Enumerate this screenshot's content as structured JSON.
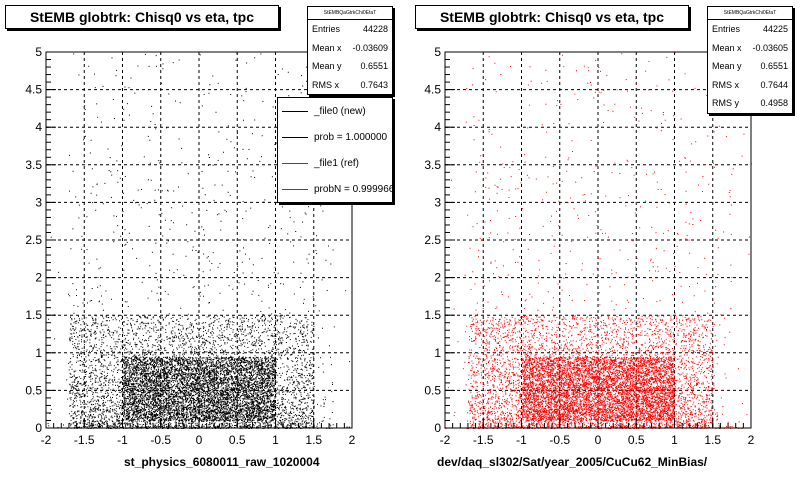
{
  "chart_data": [
    {
      "type": "scatter",
      "title": "StEMB globtrk: Chisq0 vs eta, tpc",
      "xlabel": "st_physics_6080011_raw_1020004",
      "xlim": [
        -2,
        2
      ],
      "ylim": [
        0,
        5
      ],
      "x_ticks": [
        "-2",
        "-1.5",
        "-1",
        "-0.5",
        "0",
        "0.5",
        "1",
        "1.5",
        "2"
      ],
      "y_ticks": [
        "0",
        "0.5",
        "1",
        "1.5",
        "2",
        "2.5",
        "3",
        "3.5",
        "4",
        "4.5",
        "5"
      ],
      "grid": true,
      "marker_color": "#000000",
      "stats": {
        "header": "StEMBQaGtrkChi0EtaT",
        "rows": [
          {
            "label": "Entries",
            "value": "44228"
          },
          {
            "label": "Mean x",
            "value": "-0.03609"
          },
          {
            "label": "Mean y",
            "value": "0.6551"
          },
          {
            "label": "RMS x",
            "value": "0.7643"
          }
        ]
      },
      "legend": {
        "placement": "top-right",
        "entries": [
          {
            "text": "_file0 (new)",
            "color": "#000000"
          },
          {
            "text": "prob = 1.000000",
            "color": "#000000"
          },
          {
            "text": "_file1 (ref)",
            "color": "#ff0000"
          },
          {
            "text": "probN = 0.999966",
            "color": "#ff0000"
          }
        ]
      },
      "distribution": {
        "core": {
          "x_range": [
            -1.0,
            1.0
          ],
          "y_range": [
            0.1,
            0.95
          ]
        },
        "body": {
          "x_range": [
            -1.7,
            1.5
          ],
          "y_range": [
            0.0,
            1.5
          ]
        },
        "sparse": {
          "x_range": [
            -2.0,
            2.0
          ],
          "y_range": [
            0.0,
            5.0
          ]
        }
      }
    },
    {
      "type": "scatter",
      "title": "StEMB globtrk: Chisq0 vs eta, tpc",
      "xlabel": "dev/daq_sl302/Sat/year_2005/CuCu62_MinBias/",
      "xlim": [
        -2,
        2
      ],
      "ylim": [
        0,
        5
      ],
      "x_ticks": [
        "-2",
        "-1.5",
        "-1",
        "-0.5",
        "0",
        "0.5",
        "1",
        "1.5",
        "2"
      ],
      "y_ticks": [
        "0",
        "0.5",
        "1",
        "1.5",
        "2",
        "2.5",
        "3",
        "3.5",
        "4",
        "4.5",
        "5"
      ],
      "grid": true,
      "marker_color": "#ff0000",
      "stats": {
        "header": "StEMBQaGtrkChi0EtaT",
        "rows": [
          {
            "label": "Entries",
            "value": "44225"
          },
          {
            "label": "Mean x",
            "value": "-0.03605"
          },
          {
            "label": "Mean y",
            "value": "0.6551"
          },
          {
            "label": "RMS x",
            "value": "0.7644"
          },
          {
            "label": "RMS y",
            "value": "0.4958"
          }
        ]
      },
      "distribution": {
        "core": {
          "x_range": [
            -1.0,
            1.0
          ],
          "y_range": [
            0.1,
            0.95
          ]
        },
        "body": {
          "x_range": [
            -1.7,
            1.5
          ],
          "y_range": [
            0.0,
            1.5
          ]
        },
        "sparse": {
          "x_range": [
            -2.0,
            2.0
          ],
          "y_range": [
            0.0,
            5.0
          ]
        }
      }
    }
  ]
}
